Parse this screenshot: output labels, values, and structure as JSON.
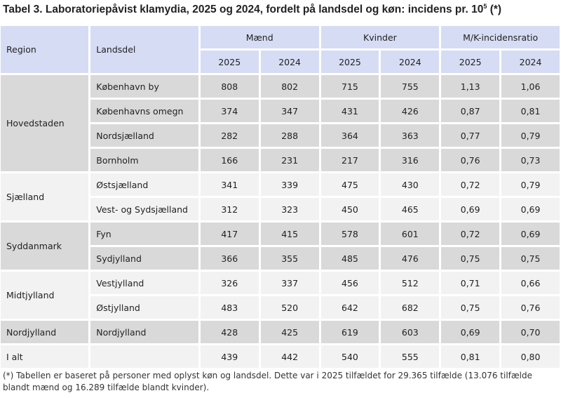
{
  "title": {
    "main": "Tabel 3. Laboratoriepåvist klamydia, 2025 og 2024, fordelt på landsdel og køn: incidens pr. 10",
    "sup": "5",
    "suffix": " (*)"
  },
  "headers": {
    "region": "Region",
    "landsdel": "Landsdel",
    "maend": "Mænd",
    "kvinder": "Kvinder",
    "ratio": "M/K-incidensratio",
    "years": [
      "2025",
      "2024",
      "2025",
      "2024",
      "2025",
      "2024"
    ]
  },
  "regions": [
    {
      "name": "Hovedstaden",
      "shade": "grey",
      "rows": [
        {
          "landsdel": "København by",
          "m25": "808",
          "m24": "802",
          "k25": "715",
          "k24": "755",
          "r25": "1,13",
          "r24": "1,06"
        },
        {
          "landsdel": "Københavns omegn",
          "m25": "374",
          "m24": "347",
          "k25": "431",
          "k24": "426",
          "r25": "0,87",
          "r24": "0,81"
        },
        {
          "landsdel": "Nordsjælland",
          "m25": "282",
          "m24": "288",
          "k25": "364",
          "k24": "363",
          "r25": "0,77",
          "r24": "0,79"
        },
        {
          "landsdel": "Bornholm",
          "m25": "166",
          "m24": "231",
          "k25": "217",
          "k24": "316",
          "r25": "0,76",
          "r24": "0,73"
        }
      ]
    },
    {
      "name": "Sjælland",
      "shade": "light",
      "rows": [
        {
          "landsdel": "Østsjælland",
          "m25": "341",
          "m24": "339",
          "k25": "475",
          "k24": "430",
          "r25": "0,72",
          "r24": "0,79"
        },
        {
          "landsdel": "Vest- og Sydsjælland",
          "m25": "312",
          "m24": "323",
          "k25": "450",
          "k24": "465",
          "r25": "0,69",
          "r24": "0,69"
        }
      ]
    },
    {
      "name": "Syddanmark",
      "shade": "grey",
      "rows": [
        {
          "landsdel": "Fyn",
          "m25": "417",
          "m24": "415",
          "k25": "578",
          "k24": "601",
          "r25": "0,72",
          "r24": "0,69"
        },
        {
          "landsdel": "Sydjylland",
          "m25": "366",
          "m24": "355",
          "k25": "485",
          "k24": "476",
          "r25": "0,75",
          "r24": "0,75"
        }
      ]
    },
    {
      "name": "Midtjylland",
      "shade": "light",
      "rows": [
        {
          "landsdel": "Vestjylland",
          "m25": "326",
          "m24": "337",
          "k25": "456",
          "k24": "512",
          "r25": "0,71",
          "r24": "0,66"
        },
        {
          "landsdel": "Østjylland",
          "m25": "483",
          "m24": "520",
          "k25": "642",
          "k24": "682",
          "r25": "0,75",
          "r24": "0,76"
        }
      ]
    },
    {
      "name": "Nordjylland",
      "shade": "grey",
      "rows": [
        {
          "landsdel": "Nordjylland",
          "m25": "428",
          "m24": "425",
          "k25": "619",
          "k24": "603",
          "r25": "0,69",
          "r24": "0,70"
        }
      ]
    },
    {
      "name": "I alt",
      "shade": "light",
      "rows": [
        {
          "landsdel": "",
          "m25": "439",
          "m24": "442",
          "k25": "540",
          "k24": "555",
          "r25": "0,81",
          "r24": "0,80"
        }
      ]
    }
  ],
  "note": "(*) Tabellen er baseret på personer med oplyst køn og landsdel. Dette var i 2025 tilfældet for 29.365 tilfælde (13.076 tilfælde blandt mænd og 16.289 tilfælde blandt kvinder).",
  "colors": {
    "header_bg": "#d6dcf4",
    "grey_bg": "#d9d9d9",
    "light_bg": "#f2f2f2"
  }
}
